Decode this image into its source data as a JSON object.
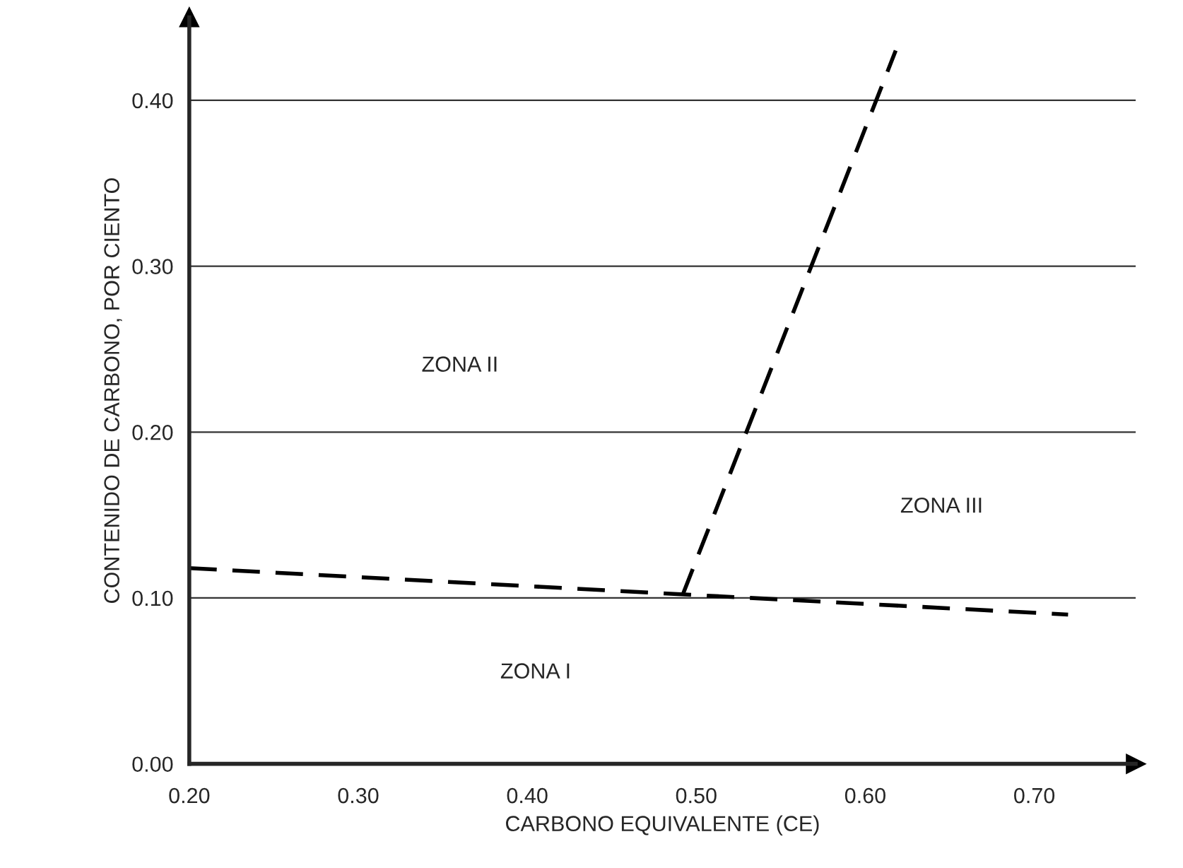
{
  "chart_data": {
    "type": "line",
    "xlabel": "CARBONO EQUIVALENTE (CE)",
    "ylabel": "CONTENIDO DE CARBONO, POR CIENTO",
    "series": [
      {
        "color": "#000000",
        "x": [
          0.2,
          0.495,
          0.72
        ],
        "values": [
          0.118,
          0.102,
          0.09
        ]
      },
      {
        "color": "#000000",
        "x": [
          0.492,
          0.618
        ],
        "values": [
          0.102,
          0.43
        ]
      }
    ],
    "xlim": [
      0.2,
      0.76
    ],
    "xticks": [
      {
        "value": 0.2,
        "label": "0.20"
      },
      {
        "value": 0.3,
        "label": "0.30"
      },
      {
        "value": 0.4,
        "label": "0.40"
      },
      {
        "value": 0.5,
        "label": "0.50"
      },
      {
        "value": 0.6,
        "label": "0.60"
      },
      {
        "value": 0.7,
        "label": "0.70"
      }
    ],
    "ylim": [
      0,
      0.45
    ],
    "yticks": [
      {
        "value": 0,
        "label": "0.00"
      },
      {
        "value": 0.1,
        "label": "0.10"
      },
      {
        "value": 0.2,
        "label": "0.20"
      },
      {
        "value": 0.3,
        "label": "0.30"
      },
      {
        "value": 0.4,
        "label": "0.40"
      }
    ],
    "grid": "y",
    "line_style": "dashed",
    "marker": "none",
    "legend": false,
    "annotations": [
      "ZONA II",
      "ZONA III",
      "ZONA I"
    ]
  }
}
